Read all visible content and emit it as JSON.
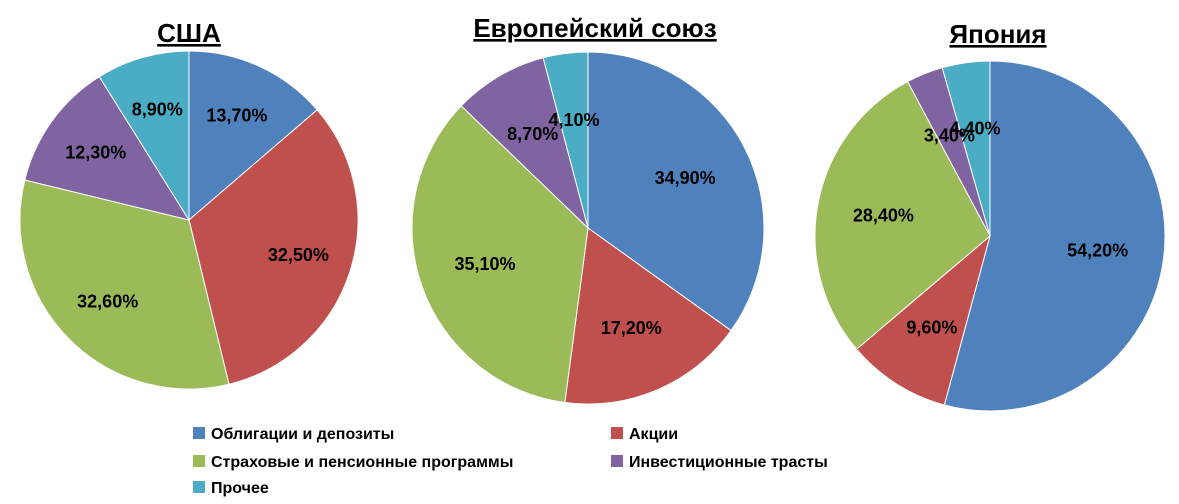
{
  "chart_data": {
    "type": "pie",
    "legend_position": "bottom",
    "categories": [
      "Облигации и депозиты",
      "Акции",
      "Страховые и пенсионные программы",
      "Инвестиционные трасты",
      "Прочее"
    ],
    "colors": [
      "#4F81BD",
      "#C0504D",
      "#9BBB59",
      "#8064A2",
      "#4BACC6"
    ],
    "series": [
      {
        "name": "США",
        "values": [
          13.7,
          32.5,
          32.6,
          12.3,
          8.9
        ],
        "labels": [
          "13,70%",
          "32,50%",
          "32,60%",
          "12,30%",
          "8,90%"
        ]
      },
      {
        "name": "Европейский союз",
        "values": [
          34.9,
          17.2,
          35.1,
          8.7,
          4.1
        ],
        "labels": [
          "34,90%",
          "17,20%",
          "35,10%",
          "8,70%",
          "4,10%"
        ]
      },
      {
        "name": "Япония",
        "values": [
          54.2,
          9.6,
          28.4,
          3.4,
          4.4
        ],
        "labels": [
          "54,20%",
          "9,60%",
          "28,40%",
          "3,40%",
          "4,40%"
        ]
      }
    ]
  }
}
